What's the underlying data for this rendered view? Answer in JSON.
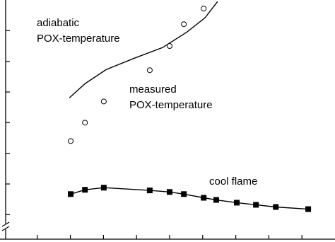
{
  "chart_data": {
    "type": "line",
    "annotations": [
      "adiabatic",
      "POX-temperature",
      "measured",
      "POX-temperature",
      "cool flame"
    ],
    "xlim": [
      0,
      10
    ],
    "ylim": [
      0.2,
      8
    ],
    "xticks": [
      1,
      2,
      3,
      4,
      5,
      6,
      7,
      8,
      9
    ],
    "yticks": [
      1,
      2,
      3,
      4,
      5,
      6,
      7
    ],
    "series": [
      {
        "color": "#000000",
        "marker": "none",
        "x": [
          1.97,
          2.44,
          3.08,
          3.93,
          4.79,
          5.53,
          6.07,
          6.45
        ],
        "values": [
          4.81,
          5.27,
          5.73,
          6.1,
          6.45,
          6.96,
          7.42,
          7.95
        ]
      },
      {
        "color": "#000000",
        "marker": "open-circle",
        "x": [
          2.01,
          2.44,
          3.01,
          4.4,
          5.0,
          5.43,
          6.03
        ],
        "values": [
          3.4,
          4.0,
          4.69,
          5.71,
          6.5,
          7.21,
          7.72
        ]
      },
      {
        "color": "#000000",
        "marker": "filled-square",
        "x": [
          2.01,
          2.44,
          3.01,
          4.4,
          5.0,
          5.43,
          6.03,
          6.41,
          7.03,
          7.61,
          8.21,
          9.19
        ],
        "values": [
          1.67,
          1.81,
          1.88,
          1.79,
          1.74,
          1.67,
          1.55,
          1.48,
          1.39,
          1.32,
          1.25,
          1.18
        ]
      }
    ]
  }
}
